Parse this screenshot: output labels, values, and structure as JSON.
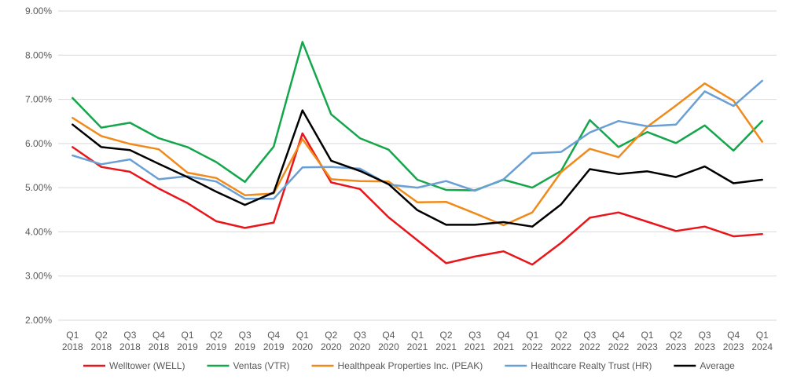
{
  "chart_data": {
    "type": "line",
    "title": "",
    "xlabel": "",
    "ylabel": "",
    "ylim": [
      0.02,
      0.09
    ],
    "y_ticks": [
      "2.00%",
      "3.00%",
      "4.00%",
      "5.00%",
      "6.00%",
      "7.00%",
      "8.00%",
      "9.00%"
    ],
    "grid": true,
    "legend_position": "bottom",
    "categories": [
      [
        "Q1",
        "2018"
      ],
      [
        "Q2",
        "2018"
      ],
      [
        "Q3",
        "2018"
      ],
      [
        "Q4",
        "2018"
      ],
      [
        "Q1",
        "2019"
      ],
      [
        "Q2",
        "2019"
      ],
      [
        "Q3",
        "2019"
      ],
      [
        "Q4",
        "2019"
      ],
      [
        "Q1",
        "2020"
      ],
      [
        "Q2",
        "2020"
      ],
      [
        "Q3",
        "2020"
      ],
      [
        "Q4",
        "2020"
      ],
      [
        "Q1",
        "2021"
      ],
      [
        "Q2",
        "2021"
      ],
      [
        "Q3",
        "2021"
      ],
      [
        "Q4",
        "2021"
      ],
      [
        "Q1",
        "2022"
      ],
      [
        "Q2",
        "2022"
      ],
      [
        "Q3",
        "2022"
      ],
      [
        "Q4",
        "2022"
      ],
      [
        "Q1",
        "2023"
      ],
      [
        "Q2",
        "2023"
      ],
      [
        "Q3",
        "2023"
      ],
      [
        "Q4",
        "2023"
      ],
      [
        "Q1",
        "2024"
      ]
    ],
    "series": [
      {
        "name": "Welltower (WELL)",
        "color": "#e8161b",
        "values": [
          0.0592,
          0.0547,
          0.0536,
          0.0498,
          0.0465,
          0.0424,
          0.0409,
          0.0421,
          0.0623,
          0.0512,
          0.0497,
          0.0433,
          0.0381,
          0.0329,
          0.0344,
          0.0356,
          0.0326,
          0.0375,
          0.0432,
          0.0444,
          0.0423,
          0.0402,
          0.0412,
          0.039,
          0.0395
        ]
      },
      {
        "name": "Ventas (VTR)",
        "color": "#13a64a",
        "values": [
          0.0703,
          0.0636,
          0.0647,
          0.0612,
          0.0592,
          0.0558,
          0.0513,
          0.0593,
          0.083,
          0.0666,
          0.0612,
          0.0586,
          0.0518,
          0.0495,
          0.0494,
          0.0518,
          0.05,
          0.0538,
          0.0653,
          0.0592,
          0.0626,
          0.0601,
          0.0641,
          0.0584,
          0.0651
        ]
      },
      {
        "name": "Healthpeak Properties Inc. (PEAK)",
        "color": "#f08a1b",
        "values": [
          0.0658,
          0.0617,
          0.0599,
          0.0587,
          0.0534,
          0.0522,
          0.0483,
          0.0487,
          0.061,
          0.0519,
          0.0515,
          0.0514,
          0.0467,
          0.0468,
          0.0442,
          0.0415,
          0.0444,
          0.0535,
          0.0588,
          0.0569,
          0.0638,
          0.0686,
          0.0736,
          0.0697,
          0.0604
        ]
      },
      {
        "name": "Healthcare Realty Trust (HR)",
        "color": "#6a9fd4",
        "values": [
          0.0573,
          0.0553,
          0.0564,
          0.0519,
          0.0526,
          0.0514,
          0.0475,
          0.0475,
          0.0546,
          0.0547,
          0.0543,
          0.0507,
          0.05,
          0.0515,
          0.0493,
          0.0519,
          0.0578,
          0.0581,
          0.0625,
          0.0651,
          0.0639,
          0.0643,
          0.0718,
          0.0685,
          0.0742
        ]
      },
      {
        "name": "Average",
        "color": "#000000",
        "values": [
          0.0643,
          0.0592,
          0.0585,
          0.0554,
          0.0524,
          0.0491,
          0.0461,
          0.0489,
          0.0675,
          0.0561,
          0.0538,
          0.0508,
          0.0449,
          0.0416,
          0.0416,
          0.0422,
          0.0412,
          0.0462,
          0.0542,
          0.0531,
          0.0537,
          0.0524,
          0.0548,
          0.051,
          0.0518
        ]
      }
    ]
  }
}
